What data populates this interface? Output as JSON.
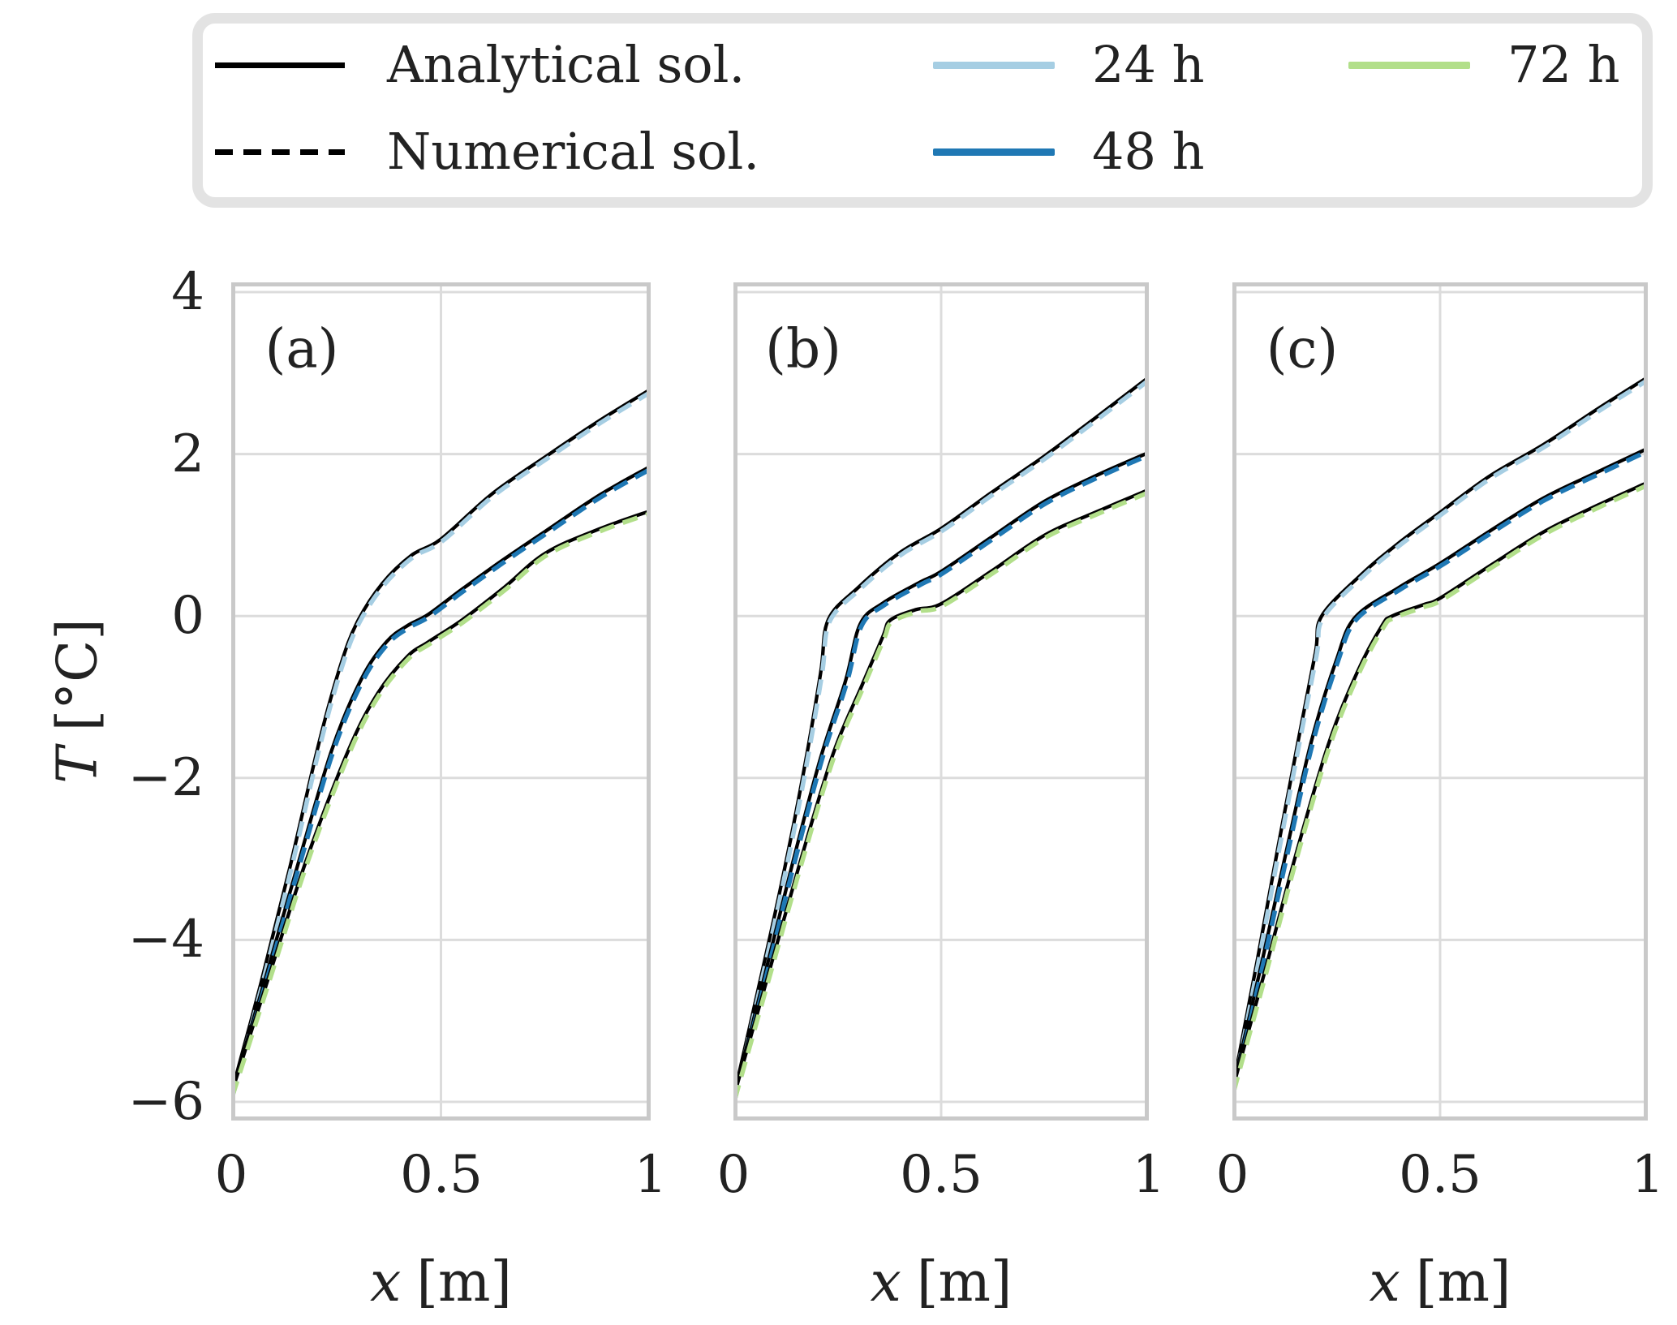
{
  "figure": {
    "background": "#ffffff",
    "text_color": "#222222",
    "grid_color": "#dcdcdc",
    "spine_color": "#c9c9c9",
    "analytical_line_color": "#000000",
    "legend": {
      "entries": [
        {
          "label": "Analytical sol.",
          "line": "solid",
          "color": "#000000"
        },
        {
          "label": "Numerical sol.",
          "line": "dashed",
          "color": "#000000"
        },
        {
          "label": "24 h",
          "line": "solid",
          "color": "#a6cee3"
        },
        {
          "label": "48 h",
          "line": "solid",
          "color": "#1f78b4"
        },
        {
          "label": "72 h",
          "line": "solid",
          "color": "#b2df8a"
        }
      ]
    },
    "xlabel_var": "x",
    "xlabel_unit": "[m]",
    "ylabel_var": "T",
    "ylabel_unit": "[°C]",
    "xtick_labels": [
      "0",
      "0.5",
      "1"
    ],
    "ytick_labels": [
      "4",
      "2",
      "0",
      "−2",
      "−4",
      "−6"
    ]
  },
  "chart_data": [
    {
      "panel": "(a)",
      "type": "line",
      "xlabel": "x [m]",
      "ylabel": "T [°C]",
      "xlim": [
        0,
        1
      ],
      "ylim": [
        -6.23,
        4.12
      ],
      "xticks": [
        0,
        0.5,
        1
      ],
      "yticks": [
        4,
        2,
        0,
        -2,
        -4,
        -6
      ],
      "grid": true,
      "legend_position": "top outside",
      "series": [
        {
          "name": "24 h",
          "color": "#a6cee3",
          "analytical": "black solid",
          "numerical": "colored dashed",
          "points": [
            [
              0,
              -5.9
            ],
            [
              0.07,
              -4.55
            ],
            [
              0.14,
              -3.1
            ],
            [
              0.21,
              -1.55
            ],
            [
              0.26,
              -0.62
            ],
            [
              0.3,
              -0.08
            ],
            [
              0.36,
              0.4
            ],
            [
              0.43,
              0.75
            ],
            [
              0.5,
              0.95
            ],
            [
              0.62,
              1.5
            ],
            [
              0.75,
              1.97
            ],
            [
              0.88,
              2.42
            ],
            [
              1.0,
              2.8
            ]
          ]
        },
        {
          "name": "48 h",
          "color": "#1f78b4",
          "analytical": "black solid",
          "numerical": "colored dashed",
          "points": [
            [
              0,
              -5.9
            ],
            [
              0.08,
              -4.5
            ],
            [
              0.16,
              -3.05
            ],
            [
              0.24,
              -1.65
            ],
            [
              0.31,
              -0.78
            ],
            [
              0.37,
              -0.32
            ],
            [
              0.42,
              -0.12
            ],
            [
              0.47,
              0.02
            ],
            [
              0.55,
              0.33
            ],
            [
              0.65,
              0.7
            ],
            [
              0.75,
              1.05
            ],
            [
              0.88,
              1.5
            ],
            [
              1.0,
              1.85
            ]
          ]
        },
        {
          "name": "72 h",
          "color": "#b2df8a",
          "analytical": "black solid",
          "numerical": "colored dashed",
          "points": [
            [
              0,
              -5.9
            ],
            [
              0.09,
              -4.45
            ],
            [
              0.18,
              -3.0
            ],
            [
              0.28,
              -1.65
            ],
            [
              0.35,
              -0.95
            ],
            [
              0.42,
              -0.5
            ],
            [
              0.47,
              -0.32
            ],
            [
              0.55,
              -0.05
            ],
            [
              0.65,
              0.35
            ],
            [
              0.75,
              0.78
            ],
            [
              0.88,
              1.08
            ],
            [
              1.0,
              1.3
            ]
          ]
        }
      ]
    },
    {
      "panel": "(b)",
      "type": "line",
      "xlabel": "x [m]",
      "ylabel": "T [°C]",
      "xlim": [
        0,
        1
      ],
      "ylim": [
        -6.23,
        4.12
      ],
      "xticks": [
        0,
        0.5,
        1
      ],
      "yticks": [
        4,
        2,
        0,
        -2,
        -4,
        -6
      ],
      "grid": true,
      "legend_position": "top outside",
      "series": [
        {
          "name": "24 h",
          "color": "#a6cee3",
          "analytical": "black solid",
          "numerical": "colored dashed",
          "points": [
            [
              0,
              -5.95
            ],
            [
              0.06,
              -4.6
            ],
            [
              0.12,
              -3.2
            ],
            [
              0.17,
              -1.9
            ],
            [
              0.21,
              -0.7
            ],
            [
              0.228,
              -0.05
            ],
            [
              0.3,
              0.35
            ],
            [
              0.4,
              0.78
            ],
            [
              0.5,
              1.08
            ],
            [
              0.62,
              1.52
            ],
            [
              0.75,
              1.98
            ],
            [
              0.88,
              2.48
            ],
            [
              1.0,
              2.95
            ]
          ]
        },
        {
          "name": "48 h",
          "color": "#1f78b4",
          "analytical": "black solid",
          "numerical": "colored dashed",
          "points": [
            [
              0,
              -5.95
            ],
            [
              0.07,
              -4.55
            ],
            [
              0.14,
              -3.1
            ],
            [
              0.21,
              -1.75
            ],
            [
              0.27,
              -0.8
            ],
            [
              0.305,
              -0.1
            ],
            [
              0.36,
              0.16
            ],
            [
              0.45,
              0.42
            ],
            [
              0.5,
              0.55
            ],
            [
              0.62,
              0.97
            ],
            [
              0.75,
              1.42
            ],
            [
              0.88,
              1.75
            ],
            [
              1.0,
              2.02
            ]
          ]
        },
        {
          "name": "72 h",
          "color": "#b2df8a",
          "analytical": "black solid",
          "numerical": "colored dashed",
          "points": [
            [
              0,
              -5.95
            ],
            [
              0.08,
              -4.5
            ],
            [
              0.16,
              -3.05
            ],
            [
              0.24,
              -1.7
            ],
            [
              0.31,
              -0.85
            ],
            [
              0.36,
              -0.25
            ],
            [
              0.378,
              -0.05
            ],
            [
              0.44,
              0.08
            ],
            [
              0.5,
              0.15
            ],
            [
              0.62,
              0.55
            ],
            [
              0.75,
              1.0
            ],
            [
              0.88,
              1.3
            ],
            [
              1.0,
              1.56
            ]
          ]
        }
      ]
    },
    {
      "panel": "(c)",
      "type": "line",
      "xlabel": "x [m]",
      "ylabel": "T [°C]",
      "xlim": [
        0,
        1
      ],
      "ylim": [
        -6.23,
        4.12
      ],
      "xticks": [
        0,
        0.5,
        1
      ],
      "yticks": [
        4,
        2,
        0,
        -2,
        -4,
        -6
      ],
      "grid": true,
      "legend_position": "top outside",
      "series": [
        {
          "name": "24 h",
          "color": "#a6cee3",
          "analytical": "black solid",
          "numerical": "colored dashed",
          "points": [
            [
              0,
              -5.85
            ],
            [
              0.06,
              -4.25
            ],
            [
              0.11,
              -2.85
            ],
            [
              0.16,
              -1.5
            ],
            [
              0.2,
              -0.45
            ],
            [
              0.215,
              0.0
            ],
            [
              0.31,
              0.51
            ],
            [
              0.4,
              0.9
            ],
            [
              0.5,
              1.28
            ],
            [
              0.62,
              1.73
            ],
            [
              0.75,
              2.12
            ],
            [
              0.88,
              2.56
            ],
            [
              1.0,
              2.95
            ]
          ]
        },
        {
          "name": "48 h",
          "color": "#1f78b4",
          "analytical": "black solid",
          "numerical": "colored dashed",
          "points": [
            [
              0,
              -5.85
            ],
            [
              0.07,
              -4.3
            ],
            [
              0.13,
              -2.9
            ],
            [
              0.19,
              -1.55
            ],
            [
              0.25,
              -0.55
            ],
            [
              0.295,
              -0.02
            ],
            [
              0.4,
              0.35
            ],
            [
              0.5,
              0.65
            ],
            [
              0.62,
              1.05
            ],
            [
              0.75,
              1.46
            ],
            [
              0.88,
              1.78
            ],
            [
              1.0,
              2.07
            ]
          ]
        },
        {
          "name": "72 h",
          "color": "#b2df8a",
          "analytical": "black solid",
          "numerical": "colored dashed",
          "points": [
            [
              0,
              -5.85
            ],
            [
              0.08,
              -4.35
            ],
            [
              0.15,
              -3.0
            ],
            [
              0.23,
              -1.6
            ],
            [
              0.3,
              -0.7
            ],
            [
              0.36,
              -0.12
            ],
            [
              0.385,
              0.0
            ],
            [
              0.46,
              0.14
            ],
            [
              0.5,
              0.22
            ],
            [
              0.62,
              0.62
            ],
            [
              0.75,
              1.04
            ],
            [
              0.88,
              1.37
            ],
            [
              1.0,
              1.65
            ]
          ]
        }
      ]
    }
  ]
}
